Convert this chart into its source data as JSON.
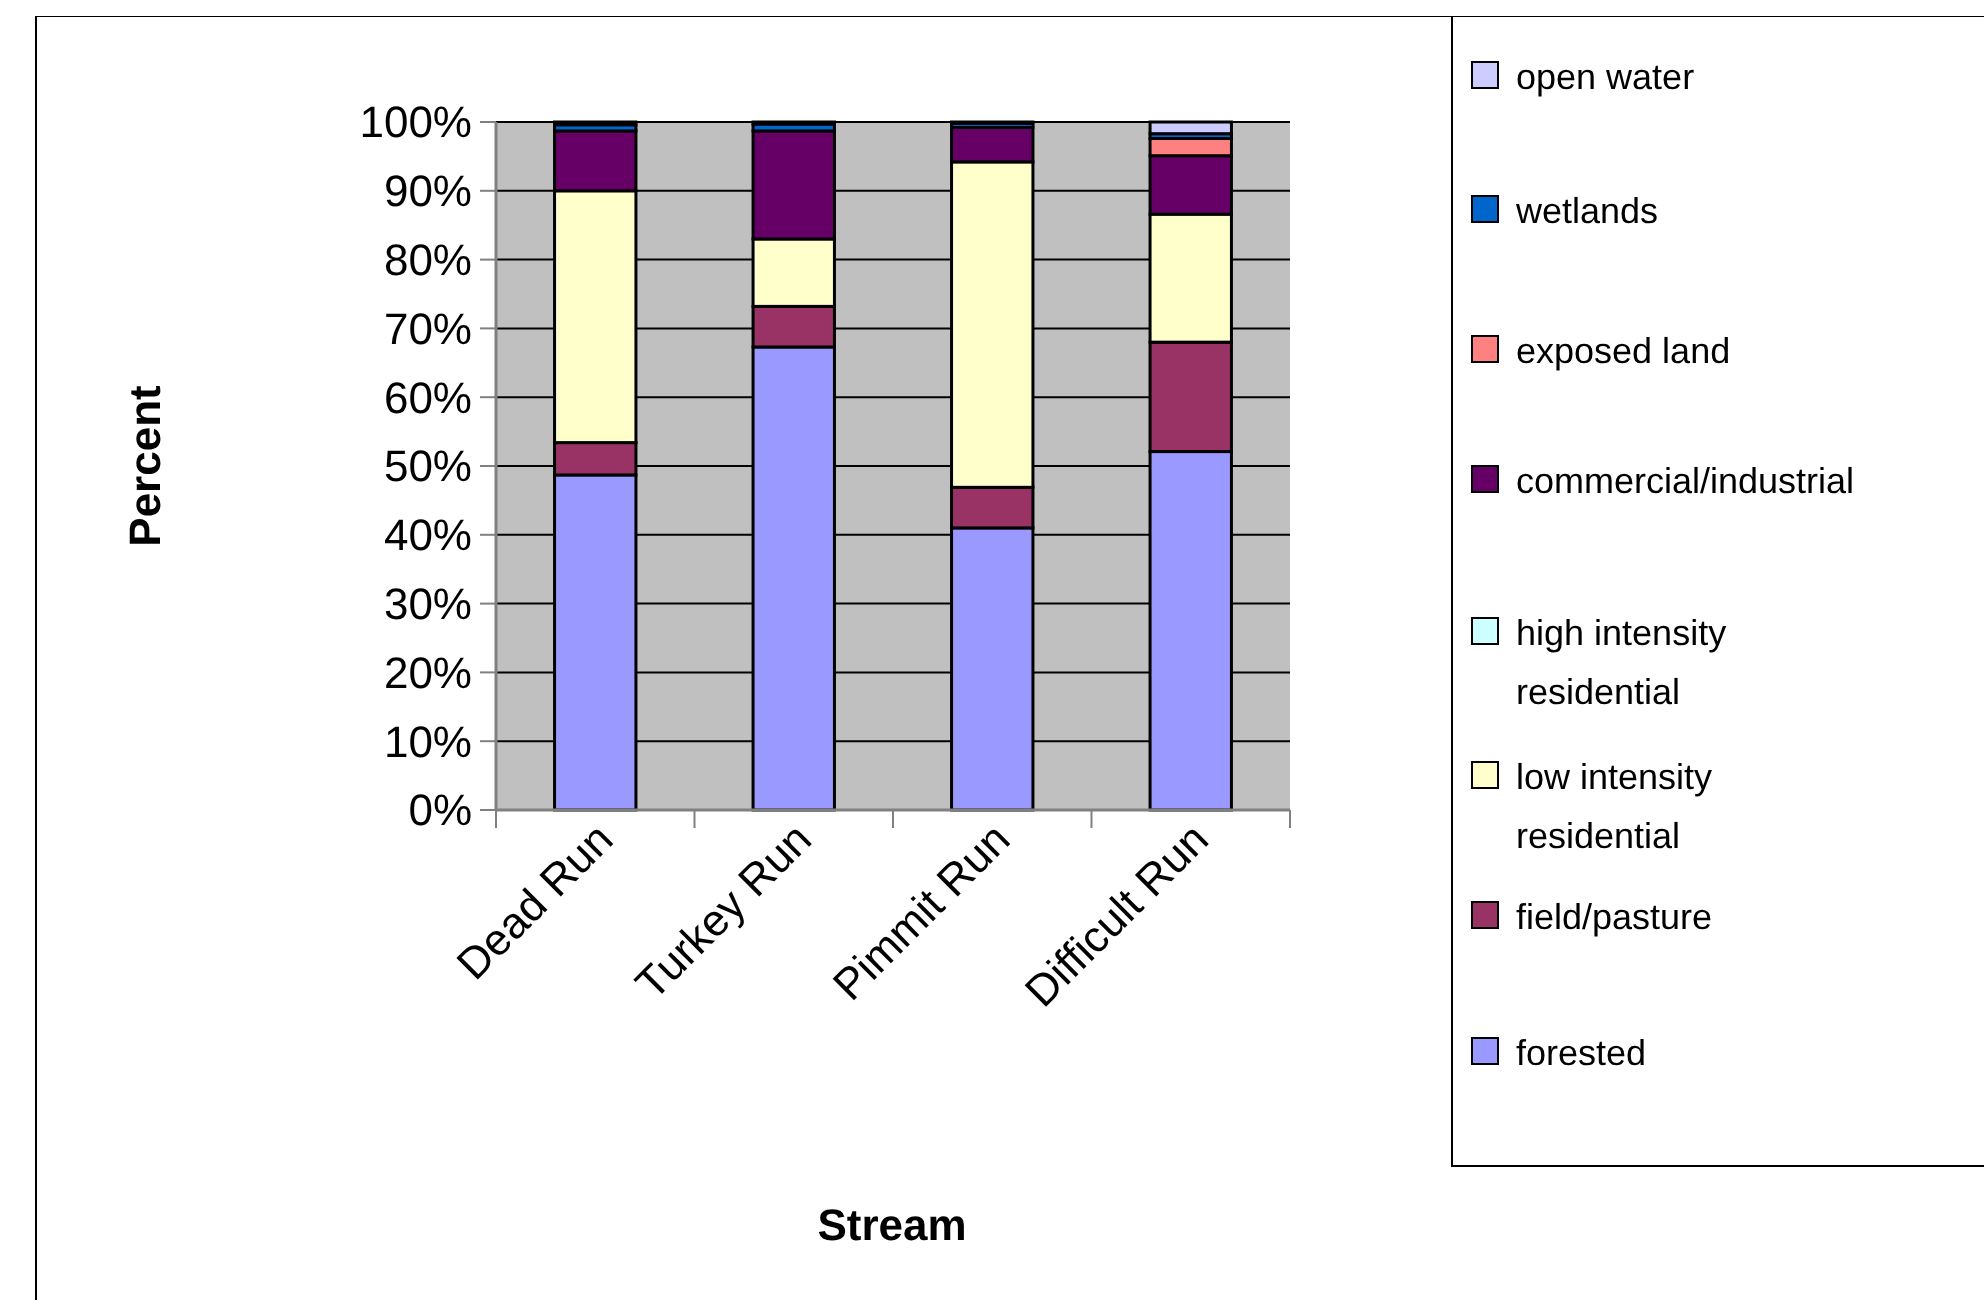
{
  "chart_data": {
    "type": "bar",
    "stacked": true,
    "xlabel": "Stream",
    "ylabel": "Percent",
    "categories": [
      "Dead Run",
      "Turkey Run",
      "Pimmit Run",
      "Difficult Run"
    ],
    "series": [
      {
        "name": "forested",
        "color": "#9999ff",
        "values": [
          48.7,
          67.3,
          41.0,
          52.1
        ]
      },
      {
        "name": "field/pasture",
        "color": "#993366",
        "values": [
          4.7,
          5.9,
          5.9,
          15.9
        ]
      },
      {
        "name": "low intensity residential",
        "color": "#ffffcc",
        "values": [
          36.6,
          9.8,
          47.3,
          18.6
        ]
      },
      {
        "name": "high intensity residential",
        "color": "#ccffff",
        "values": [
          0,
          0,
          0,
          0
        ]
      },
      {
        "name": "commercial/industrial",
        "color": "#660066",
        "values": [
          8.7,
          15.7,
          5.0,
          8.5
        ]
      },
      {
        "name": "exposed land",
        "color": "#ff8080",
        "values": [
          0,
          0,
          0,
          2.5
        ]
      },
      {
        "name": "wetlands",
        "color": "#0066cc",
        "values": [
          0.9,
          1.0,
          0.6,
          0.7
        ]
      },
      {
        "name": "open water",
        "color": "#ccccff",
        "values": [
          0.4,
          0.3,
          0.2,
          1.7
        ]
      }
    ],
    "ylim": [
      0,
      100
    ],
    "yticks": [
      {
        "value": 0,
        "label": "0%"
      },
      {
        "value": 10,
        "label": "10%"
      },
      {
        "value": 20,
        "label": "20%"
      },
      {
        "value": 30,
        "label": "30%"
      },
      {
        "value": 40,
        "label": "40%"
      },
      {
        "value": 50,
        "label": "50%"
      },
      {
        "value": 60,
        "label": "60%"
      },
      {
        "value": 70,
        "label": "70%"
      },
      {
        "value": 80,
        "label": "80%"
      },
      {
        "value": 90,
        "label": "90%"
      },
      {
        "value": 100,
        "label": "100%"
      }
    ],
    "grid": "y",
    "legend": "right"
  }
}
